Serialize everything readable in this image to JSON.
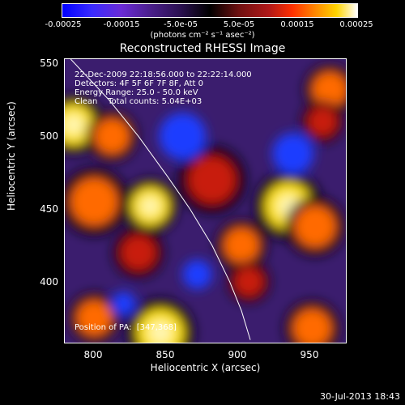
{
  "colorbar": {
    "ticks": [
      "-0.00025",
      "-0.00015",
      "-5.0e-05",
      "5.0e-05",
      "0.00015",
      "0.00025"
    ],
    "tick_values": [
      -0.00025,
      -0.00015,
      -5e-05,
      5e-05,
      0.00015,
      0.00025
    ],
    "unit": "(photons cm⁻² s⁻¹ asec⁻²)"
  },
  "chart_data": {
    "type": "heatmap",
    "title": "Reconstructed RHESSI Image",
    "xlabel": "Heliocentric X (arcsec)",
    "ylabel": "Heliocentric Y (arcsec)",
    "xlim": [
      780,
      972
    ],
    "ylim": [
      357,
      553
    ],
    "x_ticks": [
      "800",
      "850",
      "900",
      "950"
    ],
    "x_tick_values": [
      800,
      850,
      900,
      950
    ],
    "y_ticks": [
      "550",
      "500",
      "450",
      "400"
    ],
    "y_tick_values": [
      550,
      500,
      450,
      400
    ],
    "limb_curve": [
      {
        "x": 784,
        "y": 553
      },
      {
        "x": 810,
        "y": 525
      },
      {
        "x": 830,
        "y": 500
      },
      {
        "x": 850,
        "y": 472
      },
      {
        "x": 865,
        "y": 450
      },
      {
        "x": 880,
        "y": 425
      },
      {
        "x": 892,
        "y": 400
      },
      {
        "x": 900,
        "y": 380
      },
      {
        "x": 906,
        "y": 360
      }
    ],
    "bright_regions": [
      {
        "x": 786,
        "y": 508,
        "r": 14,
        "level": "yellow"
      },
      {
        "x": 812,
        "y": 500,
        "r": 12,
        "level": "orange"
      },
      {
        "x": 800,
        "y": 455,
        "r": 16,
        "level": "orange"
      },
      {
        "x": 838,
        "y": 452,
        "r": 13,
        "level": "yellow"
      },
      {
        "x": 880,
        "y": 470,
        "r": 16,
        "level": "red"
      },
      {
        "x": 932,
        "y": 452,
        "r": 16,
        "level": "yellow"
      },
      {
        "x": 950,
        "y": 438,
        "r": 14,
        "level": "orange"
      },
      {
        "x": 900,
        "y": 425,
        "r": 12,
        "level": "orange"
      },
      {
        "x": 960,
        "y": 532,
        "r": 12,
        "level": "orange"
      },
      {
        "x": 955,
        "y": 510,
        "r": 10,
        "level": "red"
      },
      {
        "x": 845,
        "y": 365,
        "r": 16,
        "level": "yellow"
      },
      {
        "x": 800,
        "y": 375,
        "r": 12,
        "level": "orange"
      },
      {
        "x": 948,
        "y": 368,
        "r": 13,
        "level": "orange"
      },
      {
        "x": 905,
        "y": 400,
        "r": 10,
        "level": "red"
      },
      {
        "x": 830,
        "y": 420,
        "r": 12,
        "level": "red"
      }
    ],
    "dim_regions": [
      {
        "x": 935,
        "y": 488,
        "r": 14,
        "level": "blue"
      },
      {
        "x": 820,
        "y": 385,
        "r": 8,
        "level": "blue"
      },
      {
        "x": 860,
        "y": 500,
        "r": 16,
        "level": "blue"
      },
      {
        "x": 870,
        "y": 405,
        "r": 10,
        "level": "blue"
      }
    ]
  },
  "annotations": {
    "time_range": "22-Dec-2009 22:18:56.000 to 22:22:14.000",
    "detectors": "Detectors: 4F 5F 6F 7F 8F, Att 0",
    "energy": "Energy Range: 25.0 - 50.0 keV",
    "clean": "Clean    Total counts: 5.04E+03",
    "pa": "Position of PA:  [347,368]"
  },
  "footer": {
    "date": "30-Jul-2013 18:43"
  },
  "colors": {
    "yellow": "#ffe200",
    "orange": "#ff6a00",
    "red": "#c81a10",
    "blue": "#1f3cff",
    "background": "#3b1d6e",
    "dark": "#0b0416"
  }
}
